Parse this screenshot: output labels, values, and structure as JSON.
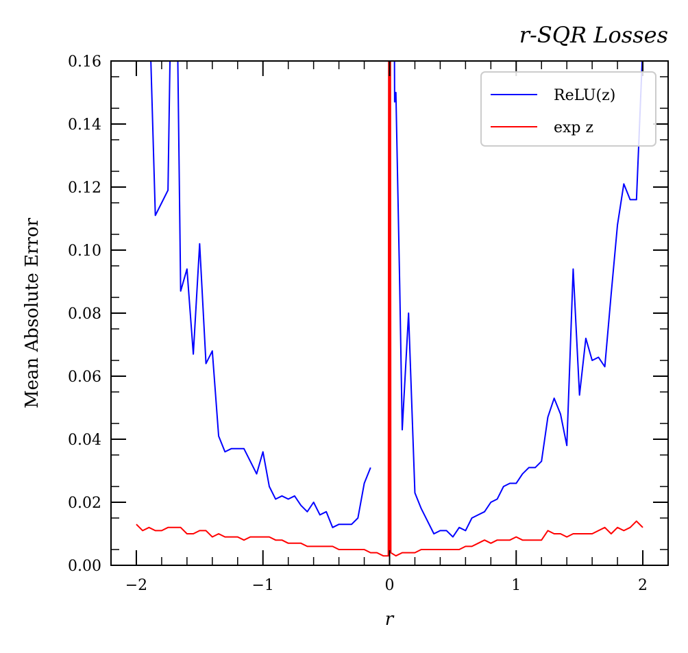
{
  "chart_data": {
    "type": "line",
    "title": "r-SQR Losses",
    "xlabel": "r",
    "ylabel": "Mean Absolute Error",
    "xlim": [
      -2.2,
      2.2
    ],
    "ylim": [
      0,
      0.16
    ],
    "x_ticks": [
      -2,
      -1,
      0,
      1,
      2
    ],
    "x_tick_labels": [
      "−2",
      "−1",
      "0",
      "1",
      "2"
    ],
    "y_ticks": [
      0,
      0.02,
      0.04,
      0.06,
      0.08,
      0.1,
      0.12,
      0.14,
      0.16
    ],
    "y_tick_labels": [
      "0.00",
      "0.02",
      "0.04",
      "0.06",
      "0.08",
      "0.10",
      "0.12",
      "0.14",
      "0.16"
    ],
    "grid": false,
    "legend_position": "top-right",
    "series": [
      {
        "name": "ReLU(z)",
        "color": "#0000ff",
        "segments": [
          [
            [
              -1.95,
              0.25
            ],
            [
              -1.85,
              0.111
            ],
            [
              -1.8,
              0.115
            ],
            [
              -1.75,
              0.119
            ],
            [
              -1.7,
              0.25
            ],
            [
              -1.65,
              0.087
            ],
            [
              -1.6,
              0.094
            ],
            [
              -1.55,
              0.067
            ],
            [
              -1.5,
              0.102
            ],
            [
              -1.45,
              0.064
            ],
            [
              -1.4,
              0.068
            ],
            [
              -1.35,
              0.041
            ],
            [
              -1.3,
              0.036
            ],
            [
              -1.25,
              0.037
            ],
            [
              -1.2,
              0.037
            ],
            [
              -1.15,
              0.037
            ],
            [
              -1.1,
              0.033
            ],
            [
              -1.05,
              0.029
            ],
            [
              -1.0,
              0.036
            ],
            [
              -0.95,
              0.025
            ],
            [
              -0.9,
              0.021
            ],
            [
              -0.85,
              0.022
            ],
            [
              -0.8,
              0.021
            ],
            [
              -0.75,
              0.022
            ],
            [
              -0.7,
              0.019
            ],
            [
              -0.65,
              0.017
            ],
            [
              -0.6,
              0.02
            ],
            [
              -0.55,
              0.016
            ],
            [
              -0.5,
              0.017
            ],
            [
              -0.45,
              0.012
            ],
            [
              -0.4,
              0.013
            ],
            [
              -0.35,
              0.013
            ],
            [
              -0.3,
              0.013
            ],
            [
              -0.25,
              0.015
            ],
            [
              -0.2,
              0.026
            ],
            [
              -0.15,
              0.031
            ]
          ],
          [
            [
              0.03,
              0.25
            ],
            [
              0.04,
              0.147
            ],
            [
              0.05,
              0.15
            ],
            [
              0.08,
              0.089
            ],
            [
              0.1,
              0.043
            ],
            [
              0.15,
              0.08
            ],
            [
              0.2,
              0.023
            ],
            [
              0.25,
              0.018
            ],
            [
              0.3,
              0.014
            ],
            [
              0.35,
              0.01
            ],
            [
              0.4,
              0.011
            ],
            [
              0.45,
              0.011
            ],
            [
              0.5,
              0.009
            ],
            [
              0.55,
              0.012
            ],
            [
              0.6,
              0.011
            ],
            [
              0.65,
              0.015
            ],
            [
              0.7,
              0.016
            ],
            [
              0.75,
              0.017
            ],
            [
              0.8,
              0.02
            ],
            [
              0.85,
              0.021
            ],
            [
              0.9,
              0.025
            ],
            [
              0.95,
              0.026
            ],
            [
              1.0,
              0.026
            ],
            [
              1.05,
              0.029
            ],
            [
              1.1,
              0.031
            ],
            [
              1.15,
              0.031
            ],
            [
              1.2,
              0.033
            ],
            [
              1.25,
              0.047
            ],
            [
              1.3,
              0.053
            ],
            [
              1.35,
              0.048
            ],
            [
              1.4,
              0.038
            ],
            [
              1.45,
              0.094
            ],
            [
              1.5,
              0.054
            ],
            [
              1.55,
              0.072
            ],
            [
              1.6,
              0.065
            ],
            [
              1.65,
              0.066
            ],
            [
              1.7,
              0.063
            ],
            [
              1.75,
              0.086
            ],
            [
              1.8,
              0.108
            ],
            [
              1.85,
              0.121
            ],
            [
              1.9,
              0.116
            ],
            [
              1.95,
              0.116
            ],
            [
              2.0,
              0.165
            ]
          ]
        ]
      },
      {
        "name": "exp z",
        "color": "#ff0000",
        "segments": [
          [
            [
              -2.0,
              0.013
            ],
            [
              -1.95,
              0.011
            ],
            [
              -1.9,
              0.012
            ],
            [
              -1.85,
              0.011
            ],
            [
              -1.8,
              0.011
            ],
            [
              -1.75,
              0.012
            ],
            [
              -1.7,
              0.012
            ],
            [
              -1.65,
              0.012
            ],
            [
              -1.6,
              0.01
            ],
            [
              -1.55,
              0.01
            ],
            [
              -1.5,
              0.011
            ],
            [
              -1.45,
              0.011
            ],
            [
              -1.4,
              0.009
            ],
            [
              -1.35,
              0.01
            ],
            [
              -1.3,
              0.009
            ],
            [
              -1.25,
              0.009
            ],
            [
              -1.2,
              0.009
            ],
            [
              -1.15,
              0.008
            ],
            [
              -1.1,
              0.009
            ],
            [
              -1.05,
              0.009
            ],
            [
              -1.0,
              0.009
            ],
            [
              -0.95,
              0.009
            ],
            [
              -0.9,
              0.008
            ],
            [
              -0.85,
              0.008
            ],
            [
              -0.8,
              0.007
            ],
            [
              -0.75,
              0.007
            ],
            [
              -0.7,
              0.007
            ],
            [
              -0.65,
              0.006
            ],
            [
              -0.6,
              0.006
            ],
            [
              -0.55,
              0.006
            ],
            [
              -0.5,
              0.006
            ],
            [
              -0.45,
              0.006
            ],
            [
              -0.4,
              0.005
            ],
            [
              -0.35,
              0.005
            ],
            [
              -0.3,
              0.005
            ],
            [
              -0.25,
              0.005
            ],
            [
              -0.2,
              0.005
            ],
            [
              -0.15,
              0.004
            ],
            [
              -0.1,
              0.004
            ],
            [
              -0.05,
              0.003
            ],
            [
              -0.01,
              0.003
            ],
            [
              -0.005,
              0.25
            ],
            [
              0.0,
              0.003
            ],
            [
              0.005,
              0.25
            ],
            [
              0.01,
              0.004
            ],
            [
              0.05,
              0.003
            ],
            [
              0.1,
              0.004
            ],
            [
              0.15,
              0.004
            ],
            [
              0.2,
              0.004
            ],
            [
              0.25,
              0.005
            ],
            [
              0.3,
              0.005
            ],
            [
              0.35,
              0.005
            ],
            [
              0.4,
              0.005
            ],
            [
              0.45,
              0.005
            ],
            [
              0.5,
              0.005
            ],
            [
              0.55,
              0.005
            ],
            [
              0.6,
              0.006
            ],
            [
              0.65,
              0.006
            ],
            [
              0.7,
              0.007
            ],
            [
              0.75,
              0.008
            ],
            [
              0.8,
              0.007
            ],
            [
              0.85,
              0.008
            ],
            [
              0.9,
              0.008
            ],
            [
              0.95,
              0.008
            ],
            [
              1.0,
              0.009
            ],
            [
              1.05,
              0.008
            ],
            [
              1.1,
              0.008
            ],
            [
              1.15,
              0.008
            ],
            [
              1.2,
              0.008
            ],
            [
              1.25,
              0.011
            ],
            [
              1.3,
              0.01
            ],
            [
              1.35,
              0.01
            ],
            [
              1.4,
              0.009
            ],
            [
              1.45,
              0.01
            ],
            [
              1.5,
              0.01
            ],
            [
              1.55,
              0.01
            ],
            [
              1.6,
              0.01
            ],
            [
              1.65,
              0.011
            ],
            [
              1.7,
              0.012
            ],
            [
              1.75,
              0.01
            ],
            [
              1.8,
              0.012
            ],
            [
              1.85,
              0.011
            ],
            [
              1.9,
              0.012
            ],
            [
              1.95,
              0.014
            ],
            [
              2.0,
              0.012
            ]
          ]
        ]
      }
    ]
  }
}
